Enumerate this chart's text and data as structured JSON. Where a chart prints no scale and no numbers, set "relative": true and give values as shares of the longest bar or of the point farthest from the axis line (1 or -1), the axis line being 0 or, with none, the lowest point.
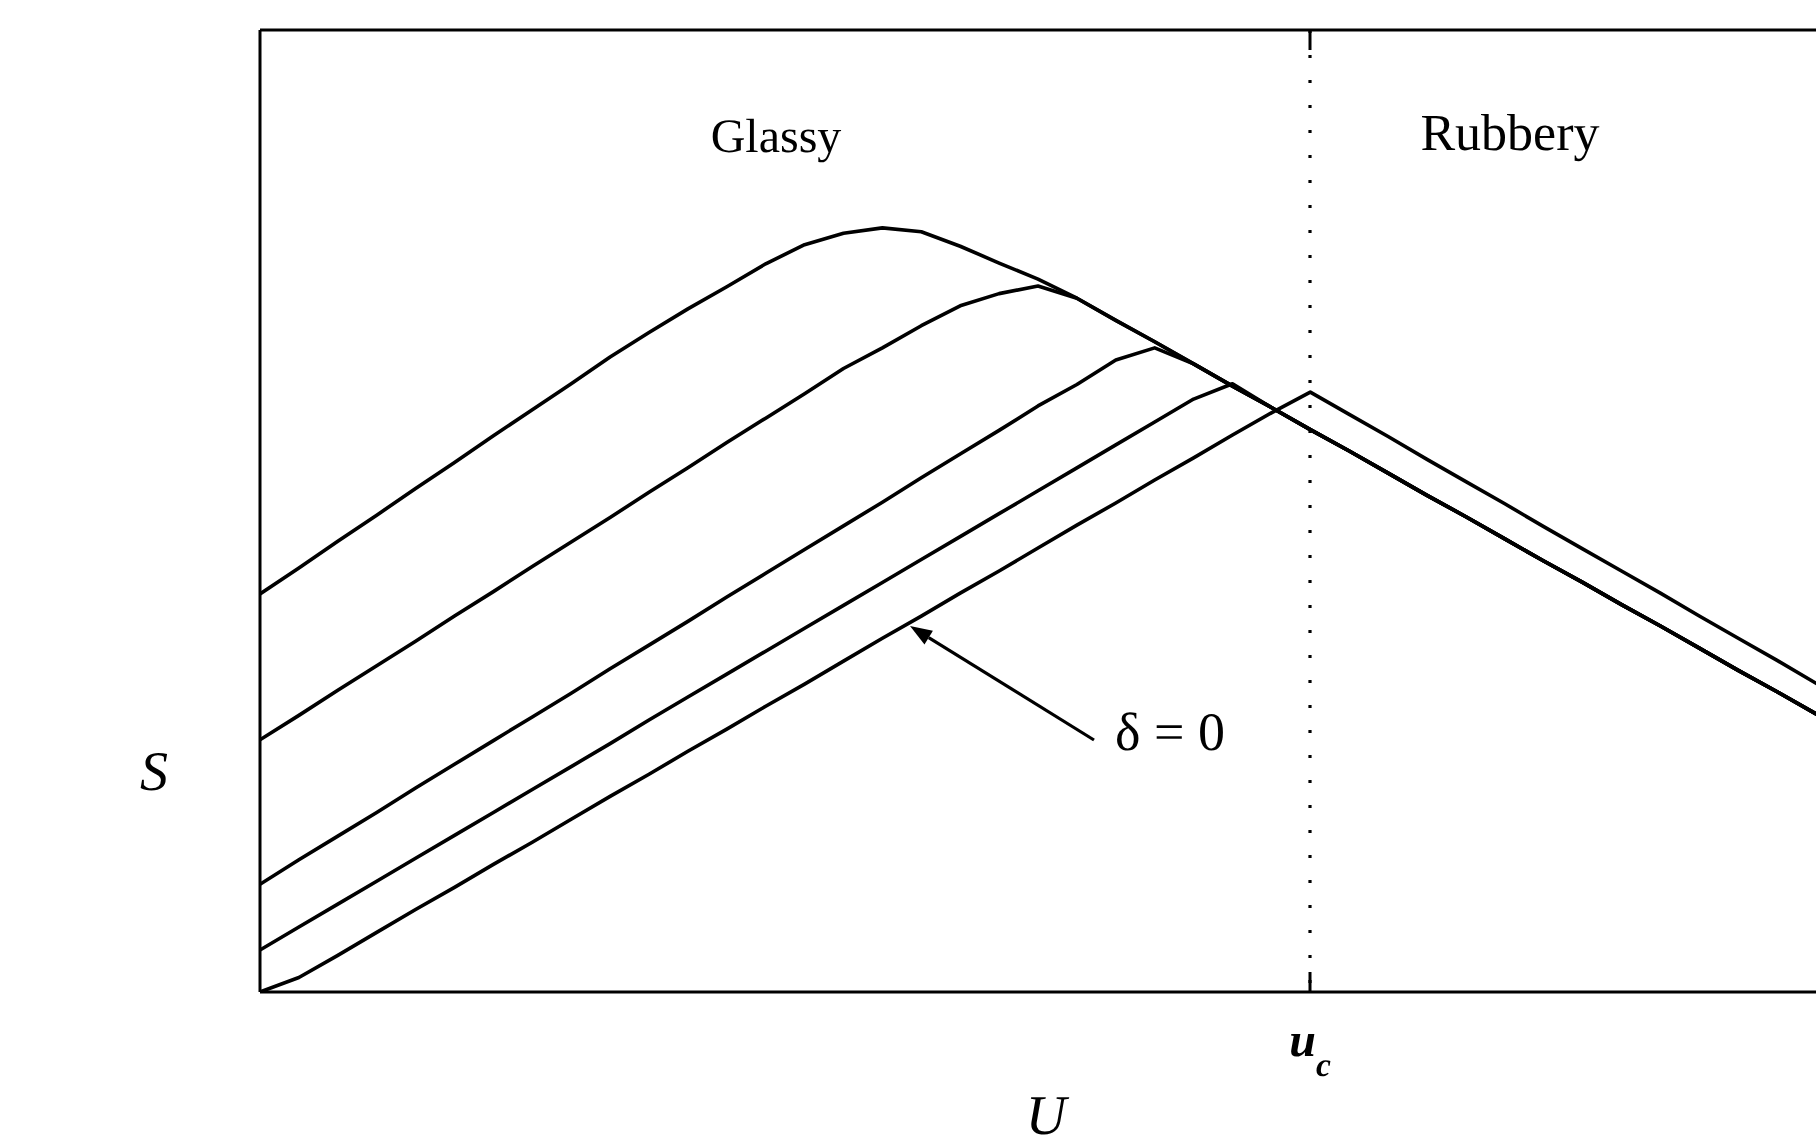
{
  "chart_data": {
    "type": "line",
    "relative": true,
    "xlabel": "U",
    "ylabel": "S",
    "categories": [
      null,
      null,
      null,
      null,
      null,
      null,
      null,
      null,
      null,
      null,
      null,
      null,
      null,
      null,
      null,
      null,
      null,
      null,
      null,
      null,
      null,
      null,
      null,
      null,
      null,
      null,
      null,
      null,
      null,
      null,
      null,
      null,
      null,
      null,
      null,
      null,
      null,
      null,
      null,
      null,
      null
    ],
    "series": [
      {
        "color": "#000000",
        "values": [
          0.521,
          0.555,
          0.59,
          0.624,
          0.659,
          0.693,
          0.728,
          0.762,
          0.796,
          0.831,
          0.863,
          0.894,
          0.923,
          0.953,
          0.978,
          0.993,
          1,
          0.995,
          0.976,
          0.954,
          0.933,
          0.908,
          0.879,
          0.851,
          0.822,
          0.793,
          0.765,
          0.736,
          0.708,
          0.679,
          0.65,
          0.622,
          0.593,
          0.564,
          0.536,
          0.507,
          0.479,
          0.45,
          0.421,
          0.393,
          0.364
        ]
      },
      {
        "color": "#000000",
        "values": [
          0.33,
          0.362,
          0.395,
          0.427,
          0.459,
          0.492,
          0.524,
          0.557,
          0.589,
          0.621,
          0.654,
          0.686,
          0.719,
          0.751,
          0.783,
          0.816,
          0.843,
          0.872,
          0.898,
          0.914,
          0.924,
          0.908,
          0.879,
          0.851,
          0.822,
          0.793,
          0.765,
          0.736,
          0.708,
          0.679,
          0.65,
          0.622,
          0.593,
          0.564,
          0.536,
          0.507,
          0.479,
          0.45,
          0.421,
          0.393,
          0.364
        ]
      },
      {
        "color": "#000000",
        "values": [
          0.141,
          0.173,
          0.204,
          0.235,
          0.267,
          0.298,
          0.329,
          0.36,
          0.391,
          0.423,
          0.454,
          0.485,
          0.517,
          0.548,
          0.579,
          0.61,
          0.641,
          0.673,
          0.704,
          0.735,
          0.767,
          0.795,
          0.827,
          0.843,
          0.822,
          0.793,
          0.765,
          0.736,
          0.708,
          0.679,
          0.65,
          0.622,
          0.593,
          0.564,
          0.536,
          0.507,
          0.479,
          0.45,
          0.421,
          0.393,
          0.364
        ]
      },
      {
        "color": "#000000",
        "values": [
          0.055,
          0.085,
          0.115,
          0.145,
          0.175,
          0.205,
          0.235,
          0.265,
          0.295,
          0.325,
          0.356,
          0.386,
          0.416,
          0.446,
          0.476,
          0.506,
          0.536,
          0.566,
          0.596,
          0.626,
          0.656,
          0.686,
          0.716,
          0.746,
          0.776,
          0.796,
          0.765,
          0.736,
          0.708,
          0.679,
          0.65,
          0.622,
          0.593,
          0.564,
          0.536,
          0.507,
          0.479,
          0.45,
          0.421,
          0.393,
          0.364
        ]
      },
      {
        "color": "#000000",
        "values": [
          0,
          0.019,
          0.048,
          0.078,
          0.108,
          0.137,
          0.167,
          0.196,
          0.226,
          0.256,
          0.285,
          0.315,
          0.344,
          0.374,
          0.403,
          0.433,
          0.463,
          0.492,
          0.522,
          0.551,
          0.581,
          0.611,
          0.64,
          0.67,
          0.699,
          0.729,
          0.758,
          0.785,
          0.756,
          0.727,
          0.697,
          0.668,
          0.639,
          0.609,
          0.58,
          0.551,
          0.522,
          0.492,
          0.463,
          0.434,
          0.404
        ]
      }
    ],
    "annotations": [
      "Glassy",
      "Rubbery",
      "δ = 0",
      "u$_{c}$"
    ]
  }
}
